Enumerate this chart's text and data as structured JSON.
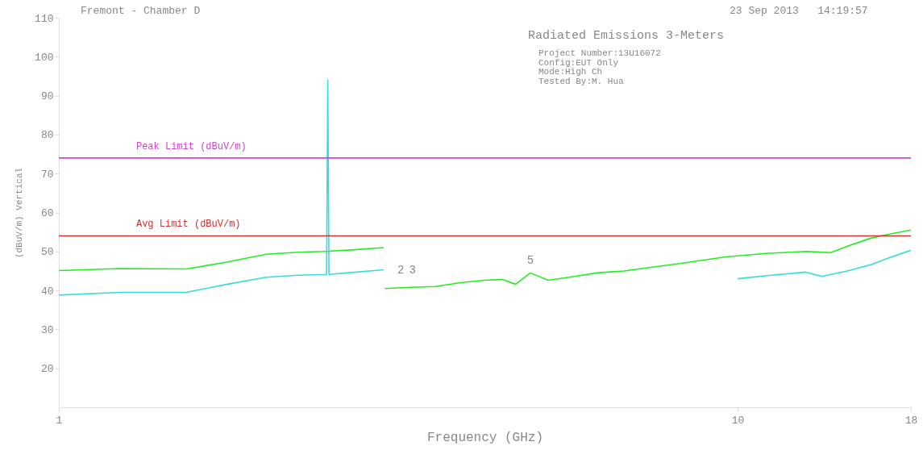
{
  "chart_data": {
    "type": "line",
    "title": "Radiated Emissions 3-Meters",
    "xlabel": "Frequency (GHz)",
    "ylabel": "(dBuV/m) Vertical",
    "log": "x",
    "xlim": [
      1,
      18
    ],
    "xticks": [
      1,
      10,
      18
    ],
    "ylim": [
      10,
      110
    ],
    "yticks": [
      20,
      30,
      40,
      50,
      60,
      70,
      80,
      90,
      100,
      110
    ],
    "series": [
      {
        "color": "#22ee22",
        "x": [
          1,
          1.23,
          1.54,
          1.76,
          2.02,
          2.25,
          2.45,
          2.7,
          3.01
        ],
        "values": [
          45.1,
          45.6,
          45.5,
          47.2,
          49.3,
          49.8,
          50,
          50.4,
          51
        ]
      },
      {
        "color": "#33dddd",
        "x": [
          1,
          1.23,
          1.54,
          1.76,
          2.02,
          2.25,
          2.48,
          2.49,
          2.5,
          2.7,
          3.01
        ],
        "values": [
          38.8,
          39.5,
          39.5,
          41.5,
          43.4,
          43.9,
          44.1,
          94,
          44.1,
          44.6,
          45.3
        ]
      },
      {
        "color": "#22ee22",
        "x": [
          3.02,
          3.3,
          3.59,
          3.9,
          4.23,
          4.5,
          4.71,
          4.95,
          5.26,
          5.7,
          6.2,
          6.8,
          7.3,
          8.3,
          9.6,
          11,
          12.6,
          13.7,
          14.6,
          15.7,
          16.8,
          18
        ],
        "values": [
          40.5,
          40.8,
          41,
          42,
          42.6,
          42.8,
          41.6,
          44.5,
          42.6,
          43.5,
          44.5,
          45,
          45.7,
          47,
          48.6,
          49.5,
          50,
          49.7,
          51.5,
          53.4,
          54.5,
          55.5
        ]
      },
      {
        "color": "#33dddd",
        "x": [
          10,
          11.2,
          12.6,
          13.3,
          14.5,
          15.7,
          16.8,
          18
        ],
        "values": [
          43,
          43.9,
          44.7,
          43.6,
          45,
          46.6,
          48.5,
          50.3
        ]
      }
    ],
    "ref_lines": [
      {
        "axis": "y",
        "value": 74,
        "label": "Peak Limit (dBuV/m)",
        "color": "#cc44cc"
      },
      {
        "axis": "y",
        "value": 54,
        "label": "Avg Limit (dBuV/m)",
        "color": "#cc3333"
      }
    ],
    "annotations": [
      "Fremont - Chamber D",
      "23 Sep 2013   14:19:57",
      "Project Number:13U16072",
      "Config:EUT Only",
      "Mode:High Ch",
      "Tested By:M. Hua",
      {
        "text": "2",
        "x": 3.19,
        "y": 42
      },
      {
        "text": "3",
        "x": 3.32,
        "y": 42
      },
      {
        "text": "5",
        "x": 4.95,
        "y": 44.5
      }
    ]
  }
}
